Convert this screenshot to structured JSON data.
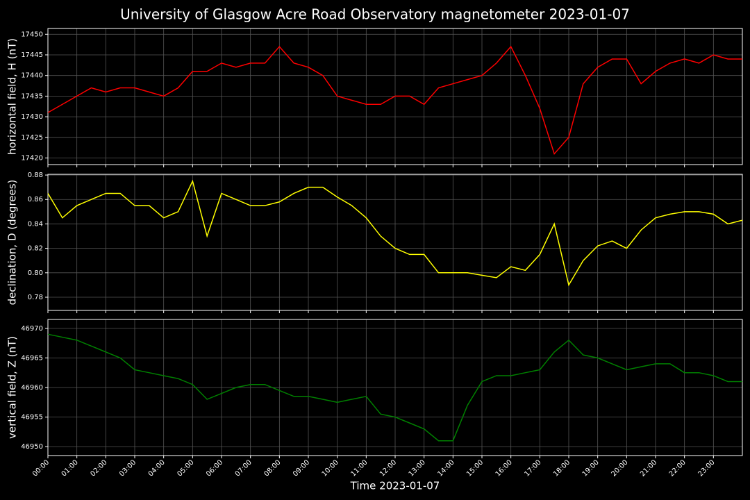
{
  "chart_data": [
    {
      "type": "line",
      "title": "University of Glasgow Acre Road Observatory magnetometer 2023-01-07",
      "ylabel": "horizontal field, H (nT)",
      "x": [
        0,
        0.5,
        1,
        1.5,
        2,
        2.5,
        3,
        3.5,
        4,
        4.5,
        5,
        5.5,
        6,
        6.5,
        7,
        7.5,
        8,
        8.5,
        9,
        9.5,
        10,
        10.5,
        11,
        11.5,
        12,
        12.5,
        13,
        13.5,
        14,
        14.5,
        15,
        15.5,
        16,
        16.5,
        17,
        17.5,
        18,
        18.5,
        19,
        19.5,
        20,
        20.5,
        21,
        21.5,
        22,
        22.5,
        23,
        23.5,
        24
      ],
      "series": [
        {
          "color": "#ff0000",
          "values": [
            17431,
            17433,
            17435,
            17437,
            17436,
            17437,
            17437,
            17436,
            17435,
            17437,
            17441,
            17441,
            17443,
            17442,
            17443,
            17443,
            17447,
            17443,
            17442,
            17440,
            17435,
            17434,
            17433,
            17433,
            17435,
            17435,
            17433,
            17437,
            17438,
            17439,
            17440,
            17443,
            17447,
            17440,
            17432,
            17421,
            17425,
            17438,
            17442,
            17444,
            17444,
            17438,
            17441,
            17443,
            17444,
            17443,
            17445,
            17444,
            17444
          ]
        }
      ],
      "xlim": [
        0,
        24
      ],
      "xticks": [
        0,
        1,
        2,
        3,
        4,
        5,
        6,
        7,
        8,
        9,
        10,
        11,
        12,
        13,
        14,
        15,
        16,
        17,
        18,
        19,
        20,
        21,
        22,
        23
      ],
      "ylim": [
        17418.4,
        17451.4
      ],
      "yticks": [
        17420,
        17425,
        17430,
        17435,
        17440,
        17445,
        17450
      ],
      "grid": true
    },
    {
      "type": "line",
      "ylabel": "declination, D (degrees)",
      "x": [
        0,
        0.5,
        1,
        1.5,
        2,
        2.5,
        3,
        3.5,
        4,
        4.5,
        5,
        5.5,
        6,
        6.5,
        7,
        7.5,
        8,
        8.5,
        9,
        9.5,
        10,
        10.5,
        11,
        11.5,
        12,
        12.5,
        13,
        13.5,
        14,
        14.5,
        15,
        15.5,
        16,
        16.5,
        17,
        17.5,
        18,
        18.5,
        19,
        19.5,
        20,
        20.5,
        21,
        21.5,
        22,
        22.5,
        23,
        23.5,
        24
      ],
      "series": [
        {
          "color": "#ffff00",
          "values": [
            0.865,
            0.845,
            0.855,
            0.86,
            0.865,
            0.865,
            0.855,
            0.855,
            0.845,
            0.85,
            0.875,
            0.83,
            0.865,
            0.86,
            0.855,
            0.855,
            0.858,
            0.865,
            0.87,
            0.87,
            0.862,
            0.855,
            0.845,
            0.83,
            0.82,
            0.815,
            0.815,
            0.8,
            0.8,
            0.8,
            0.798,
            0.796,
            0.805,
            0.802,
            0.815,
            0.84,
            0.79,
            0.81,
            0.822,
            0.826,
            0.82,
            0.835,
            0.845,
            0.848,
            0.85,
            0.85,
            0.848,
            0.84,
            0.843
          ]
        }
      ],
      "xlim": [
        0,
        24
      ],
      "xticks": [
        0,
        1,
        2,
        3,
        4,
        5,
        6,
        7,
        8,
        9,
        10,
        11,
        12,
        13,
        14,
        15,
        16,
        17,
        18,
        19,
        20,
        21,
        22,
        23
      ],
      "ylim": [
        0.7692,
        0.8806
      ],
      "yticks": [
        0.78,
        {
          "value": 0.8,
          "label": "0.80"
        },
        0.82,
        0.84,
        0.86,
        0.88
      ],
      "grid": true
    },
    {
      "type": "line",
      "ylabel": "vertical field, Z (nT)",
      "xlabel": "Time 2023-01-07",
      "x": [
        0,
        0.5,
        1,
        1.5,
        2,
        2.5,
        3,
        3.5,
        4,
        4.5,
        5,
        5.5,
        6,
        6.5,
        7,
        7.5,
        8,
        8.5,
        9,
        9.5,
        10,
        10.5,
        11,
        11.5,
        12,
        12.5,
        13,
        13.5,
        14,
        14.5,
        15,
        15.5,
        16,
        16.5,
        17,
        17.5,
        18,
        18.5,
        19,
        19.5,
        20,
        20.5,
        21,
        21.5,
        22,
        22.5,
        23,
        23.5,
        24
      ],
      "series": [
        {
          "color": "#008000",
          "values": [
            46969,
            46968.5,
            46968,
            46967,
            46966,
            46965,
            46963,
            46962.5,
            46962,
            46961.5,
            46960.5,
            46958,
            46959,
            46960,
            46960.5,
            46960.5,
            46959.5,
            46958.5,
            46958.5,
            46958,
            46957.5,
            46958,
            46958.5,
            46955.5,
            46955,
            46954,
            46953,
            46951,
            46951,
            46957,
            46961,
            46962,
            46962,
            46962.5,
            46963,
            46966,
            46968,
            46965.5,
            46965,
            46964,
            46963,
            46963.5,
            46964,
            46964,
            46962.5,
            46962.5,
            46962,
            46961,
            46961
          ]
        }
      ],
      "xlim": [
        0,
        24
      ],
      "xticks": [
        {
          "value": 0,
          "label": "00:00"
        },
        {
          "value": 1,
          "label": "01:00"
        },
        {
          "value": 2,
          "label": "02:00"
        },
        {
          "value": 3,
          "label": "03:00"
        },
        {
          "value": 4,
          "label": "04:00"
        },
        {
          "value": 5,
          "label": "05:00"
        },
        {
          "value": 6,
          "label": "06:00"
        },
        {
          "value": 7,
          "label": "07:00"
        },
        {
          "value": 8,
          "label": "08:00"
        },
        {
          "value": 9,
          "label": "09:00"
        },
        {
          "value": 10,
          "label": "10:00"
        },
        {
          "value": 11,
          "label": "11:00"
        },
        {
          "value": 12,
          "label": "12:00"
        },
        {
          "value": 13,
          "label": "13:00"
        },
        {
          "value": 14,
          "label": "14:00"
        },
        {
          "value": 15,
          "label": "15:00"
        },
        {
          "value": 16,
          "label": "16:00"
        },
        {
          "value": 17,
          "label": "17:00"
        },
        {
          "value": 18,
          "label": "18:00"
        },
        {
          "value": 19,
          "label": "19:00"
        },
        {
          "value": 20,
          "label": "20:00"
        },
        {
          "value": 21,
          "label": "21:00"
        },
        {
          "value": 22,
          "label": "22:00"
        },
        {
          "value": 23,
          "label": "23:00"
        }
      ],
      "ylim": [
        46948.5,
        46971.5
      ],
      "yticks": [
        46950,
        46955,
        46960,
        46965,
        46970
      ],
      "grid": true
    }
  ]
}
